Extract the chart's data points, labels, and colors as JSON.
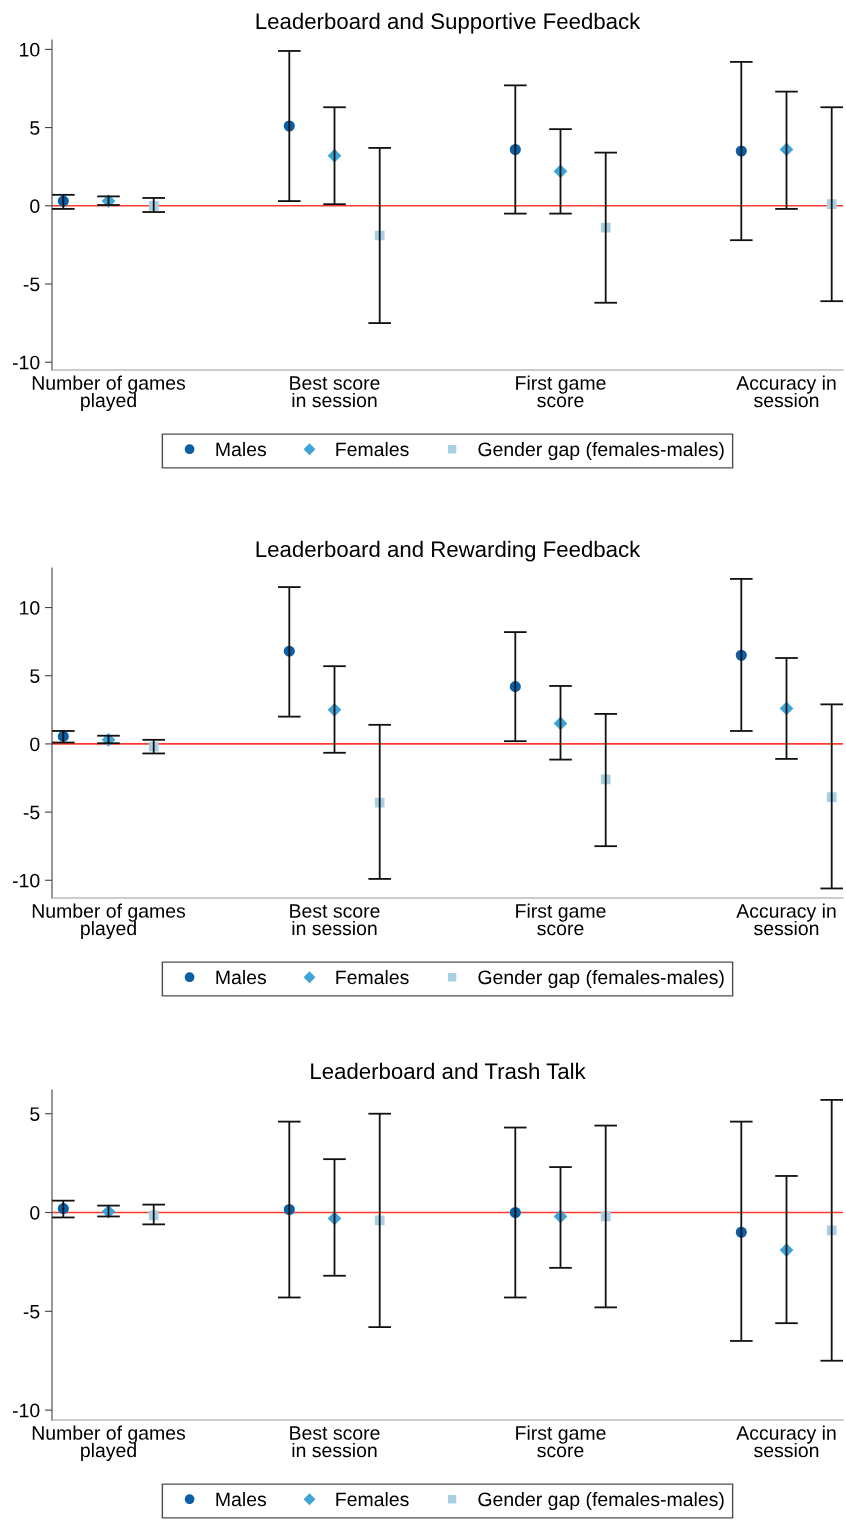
{
  "chart_data": [
    {
      "type": "scatter",
      "title": "Leaderboard and Supportive Feedback",
      "categories": [
        "Number of games\nplayed",
        "Best score\nin session",
        "First game\nscore",
        "Accuracy in\nsession"
      ],
      "ylim": [
        -10.5,
        10.6
      ],
      "yticks": [
        -10,
        -5,
        0,
        5,
        10
      ],
      "legend": "bottom",
      "grid": false,
      "ref_lines": [
        {
          "axis": "y",
          "value": 0,
          "color": "#ff3b30"
        }
      ],
      "series": [
        {
          "name": "Males",
          "color": "#0b5fa5",
          "marker": "circle",
          "values": [
            0.3,
            5.1,
            3.6,
            3.5
          ],
          "errors": [
            [
              -0.2,
              0.7
            ],
            [
              0.3,
              9.9
            ],
            [
              -0.5,
              7.7
            ],
            [
              -2.2,
              9.2
            ]
          ]
        },
        {
          "name": "Females",
          "color": "#3fa4d6",
          "marker": "diamond",
          "values": [
            0.3,
            3.2,
            2.2,
            3.6
          ],
          "errors": [
            [
              0.05,
              0.6
            ],
            [
              0.1,
              6.3
            ],
            [
              -0.5,
              4.9
            ],
            [
              -0.2,
              7.3
            ]
          ]
        },
        {
          "name": "Gender gap (females-males)",
          "color": "#a8cfe3",
          "marker": "square",
          "values": [
            0.0,
            -1.9,
            -1.4,
            0.1
          ],
          "errors": [
            [
              -0.4,
              0.5
            ],
            [
              -7.5,
              3.7
            ],
            [
              -6.2,
              3.4
            ],
            [
              -6.1,
              6.3
            ]
          ]
        }
      ]
    },
    {
      "type": "scatter",
      "title": "Leaderboard and Rewarding Feedback",
      "categories": [
        "Number of games\nplayed",
        "Best score\nin session",
        "First game\nscore",
        "Accuracy in\nsession"
      ],
      "ylim": [
        -11.3,
        12.9
      ],
      "yticks": [
        -10,
        -5,
        0,
        5,
        10
      ],
      "legend": "bottom",
      "grid": false,
      "ref_lines": [
        {
          "axis": "y",
          "value": 0,
          "color": "#ff3b30"
        }
      ],
      "series": [
        {
          "name": "Males",
          "color": "#0b5fa5",
          "marker": "circle",
          "values": [
            0.55,
            6.8,
            4.2,
            6.5
          ],
          "errors": [
            [
              0.1,
              0.95
            ],
            [
              2.0,
              11.5
            ],
            [
              0.2,
              8.2
            ],
            [
              0.95,
              12.1
            ]
          ]
        },
        {
          "name": "Females",
          "color": "#3fa4d6",
          "marker": "diamond",
          "values": [
            0.3,
            2.5,
            1.5,
            2.6
          ],
          "errors": [
            [
              0.05,
              0.6
            ],
            [
              -0.65,
              5.7
            ],
            [
              -1.15,
              4.25
            ],
            [
              -1.1,
              6.3
            ]
          ]
        },
        {
          "name": "Gender gap (females-males)",
          "color": "#a8cfe3",
          "marker": "square",
          "values": [
            -0.2,
            -4.3,
            -2.6,
            -3.9
          ],
          "errors": [
            [
              -0.7,
              0.3
            ],
            [
              -9.9,
              1.4
            ],
            [
              -7.5,
              2.2
            ],
            [
              -10.6,
              2.9
            ]
          ]
        }
      ]
    },
    {
      "type": "scatter",
      "title": "Leaderboard and Trash Talk",
      "categories": [
        "Number of games\nplayed",
        "Best score\nin session",
        "First game\nscore",
        "Accuracy in\nsession"
      ],
      "ylim": [
        -10.5,
        6.2
      ],
      "yticks": [
        -10,
        -5,
        0,
        5
      ],
      "legend": "bottom",
      "grid": false,
      "ref_lines": [
        {
          "axis": "y",
          "value": 0,
          "color": "#ff3b30"
        }
      ],
      "series": [
        {
          "name": "Males",
          "color": "#0b5fa5",
          "marker": "circle",
          "values": [
            0.2,
            0.15,
            0.0,
            -1.0
          ],
          "errors": [
            [
              -0.25,
              0.6
            ],
            [
              -4.3,
              4.6
            ],
            [
              -4.3,
              4.3
            ],
            [
              -6.5,
              4.6
            ]
          ]
        },
        {
          "name": "Females",
          "color": "#3fa4d6",
          "marker": "diamond",
          "values": [
            0.05,
            -0.3,
            -0.2,
            -1.9
          ],
          "errors": [
            [
              -0.2,
              0.35
            ],
            [
              -3.2,
              2.7
            ],
            [
              -2.8,
              2.3
            ],
            [
              -5.6,
              1.85
            ]
          ]
        },
        {
          "name": "Gender gap (females-males)",
          "color": "#a8cfe3",
          "marker": "square",
          "values": [
            -0.15,
            -0.4,
            -0.2,
            -0.9
          ],
          "errors": [
            [
              -0.6,
              0.4
            ],
            [
              -5.8,
              5.0
            ],
            [
              -4.8,
              4.4
            ],
            [
              -7.5,
              5.7
            ]
          ]
        }
      ]
    }
  ]
}
